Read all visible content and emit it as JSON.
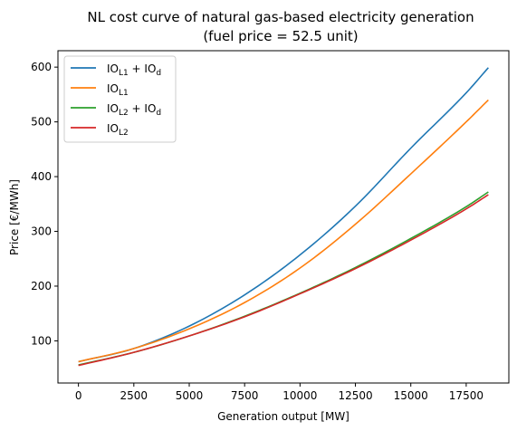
{
  "chart_data": {
    "type": "line",
    "title": "NL cost curve of natural gas-based electricity generation",
    "subtitle": "(fuel price = 52.5 unit)",
    "xlabel": "Generation output [MW]",
    "ylabel": "Price [€/MWh]",
    "xlim": [
      -925,
      19425
    ],
    "ylim": [
      23,
      630
    ],
    "xticks": [
      0,
      2500,
      5000,
      7500,
      10000,
      12500,
      15000,
      17500
    ],
    "yticks": [
      100,
      200,
      300,
      400,
      500,
      600
    ],
    "xtick_labels": [
      "0",
      "2500",
      "5000",
      "7500",
      "10000",
      "12500",
      "15000",
      "17500"
    ],
    "ytick_labels": [
      "100",
      "200",
      "300",
      "400",
      "500",
      "600"
    ],
    "grid": false,
    "legend_position": "top-left",
    "x": [
      0,
      2500,
      5000,
      7500,
      10000,
      12500,
      15000,
      17500,
      18500
    ],
    "series": [
      {
        "name_parts": [
          [
            "IO",
            ""
          ],
          [
            "L1",
            "sub"
          ],
          [
            " + IO",
            ""
          ],
          [
            "d",
            "sub"
          ]
        ],
        "color": "#1f77b4",
        "values": [
          62,
          86,
          127,
          184,
          257,
          346,
          452,
          553,
          599
        ]
      },
      {
        "name_parts": [
          [
            "IO",
            ""
          ],
          [
            "L1",
            "sub"
          ]
        ],
        "color": "#ff7f0e",
        "values": [
          62,
          86,
          122,
          170,
          233,
          313,
          405,
          500,
          540
        ]
      },
      {
        "name_parts": [
          [
            "IO",
            ""
          ],
          [
            "L2",
            "sub"
          ],
          [
            " + IO",
            ""
          ],
          [
            "d",
            "sub"
          ]
        ],
        "color": "#2ca02c",
        "values": [
          56,
          79,
          109,
          145,
          187,
          234,
          287,
          345,
          372
        ]
      },
      {
        "name_parts": [
          [
            "IO",
            ""
          ],
          [
            "L2",
            "sub"
          ]
        ],
        "color": "#d62728",
        "values": [
          55,
          79,
          109,
          144,
          186,
          232,
          284,
          341,
          367
        ]
      }
    ]
  }
}
